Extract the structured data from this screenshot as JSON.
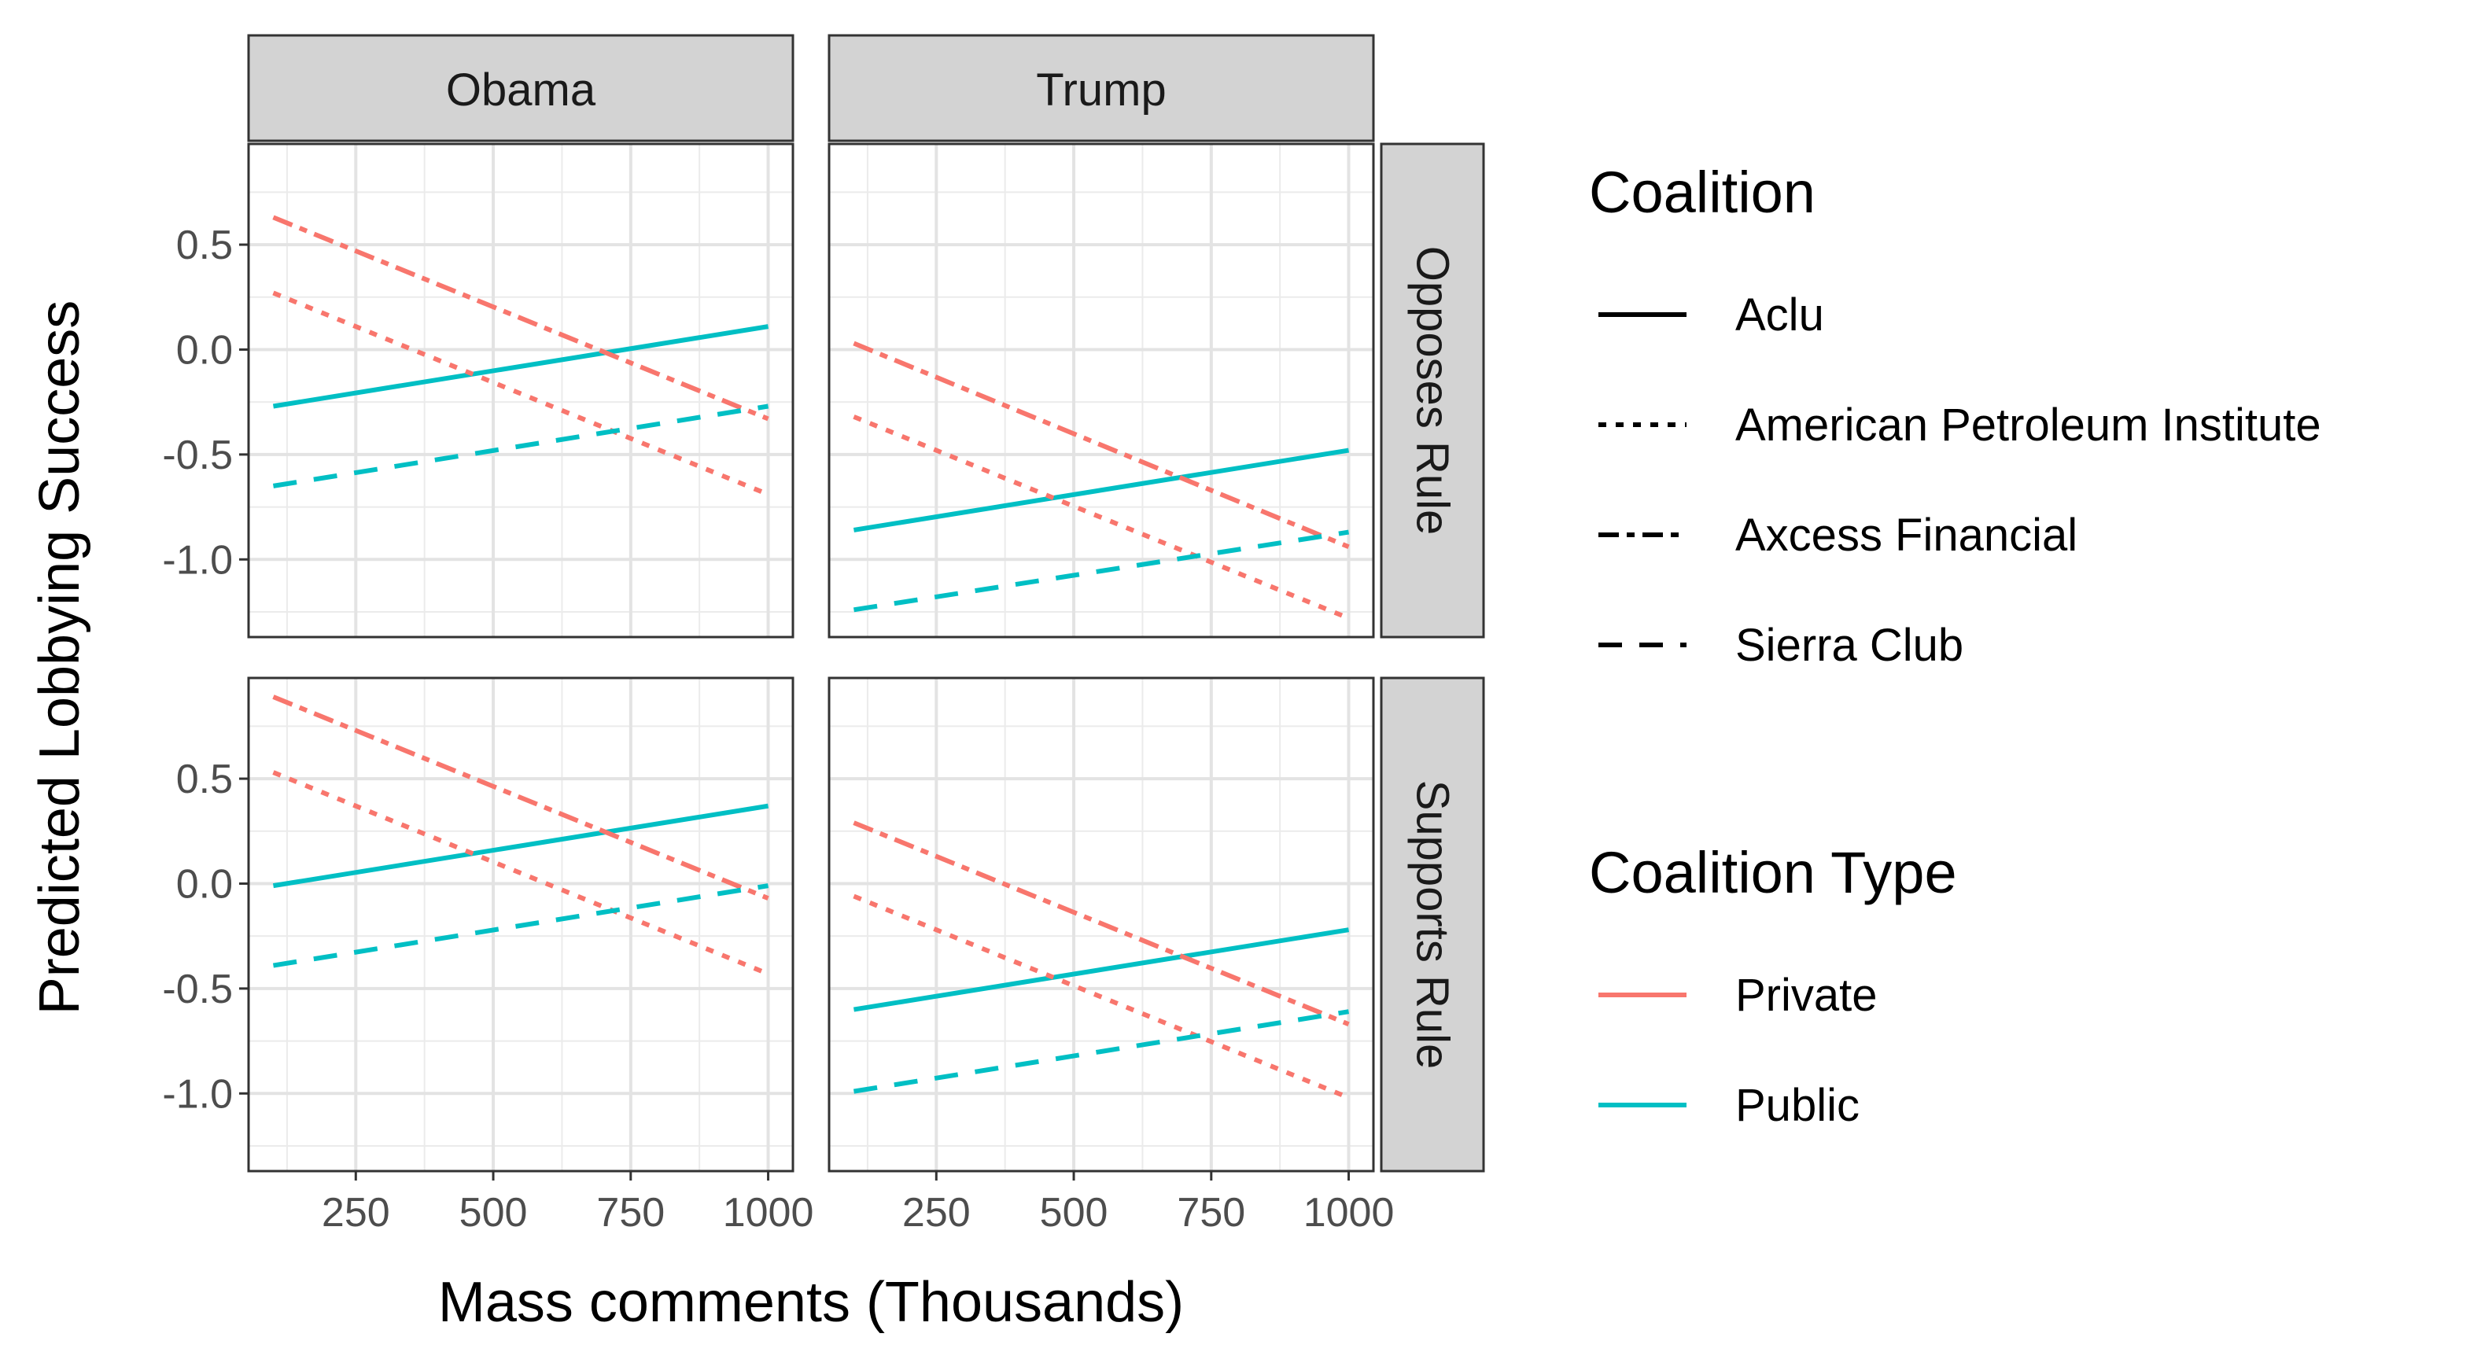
{
  "chart_data": {
    "type": "line",
    "x_label": "Mass comments (Thousands)",
    "y_label": "Predicted Lobbying Success",
    "x_ticks": [
      250,
      500,
      750,
      1000
    ],
    "y_ticks": [
      0.5,
      0.0,
      -0.5,
      -1.0
    ],
    "y_tick_labels": [
      "0.5",
      "0.0",
      "-0.5",
      "-1.0"
    ],
    "x_range": [
      55,
      1045
    ],
    "y_range": [
      -1.37,
      0.98
    ],
    "facet_columns": [
      "Obama",
      "Trump"
    ],
    "facet_rows": [
      "Opposes Rule",
      "Supports Rule"
    ],
    "legends": {
      "linetype": {
        "title": "Coalition",
        "entries": [
          {
            "label": "Aclu",
            "dash": "solid"
          },
          {
            "label": "American Petroleum Institute",
            "dash": "dotted"
          },
          {
            "label": "Axcess Financial",
            "dash": "dashdot"
          },
          {
            "label": "Sierra Club",
            "dash": "dashed"
          }
        ]
      },
      "color": {
        "title": "Coalition Type",
        "entries": [
          {
            "label": "Private",
            "color": "#F8766D"
          },
          {
            "label": "Public",
            "color": "#00BFC4"
          }
        ]
      }
    },
    "panels": [
      {
        "column": "Obama",
        "row": "Opposes Rule",
        "series": [
          {
            "coalition": "Aclu",
            "type": "Public",
            "x": [
              100,
              1000
            ],
            "y": [
              -0.27,
              0.11
            ]
          },
          {
            "coalition": "American Petroleum Institute",
            "type": "Private",
            "x": [
              100,
              1000
            ],
            "y": [
              0.27,
              -0.69
            ]
          },
          {
            "coalition": "Axcess Financial",
            "type": "Private",
            "x": [
              100,
              1000
            ],
            "y": [
              0.63,
              -0.33
            ]
          },
          {
            "coalition": "Sierra Club",
            "type": "Public",
            "x": [
              100,
              1000
            ],
            "y": [
              -0.65,
              -0.27
            ]
          }
        ]
      },
      {
        "column": "Trump",
        "row": "Opposes Rule",
        "series": [
          {
            "coalition": "Aclu",
            "type": "Public",
            "x": [
              100,
              1000
            ],
            "y": [
              -0.86,
              -0.48
            ]
          },
          {
            "coalition": "American Petroleum Institute",
            "type": "Private",
            "x": [
              100,
              1000
            ],
            "y": [
              -0.32,
              -1.28
            ]
          },
          {
            "coalition": "Axcess Financial",
            "type": "Private",
            "x": [
              100,
              1000
            ],
            "y": [
              0.03,
              -0.94
            ]
          },
          {
            "coalition": "Sierra Club",
            "type": "Public",
            "x": [
              100,
              1000
            ],
            "y": [
              -1.24,
              -0.87
            ]
          }
        ]
      },
      {
        "column": "Obama",
        "row": "Supports Rule",
        "series": [
          {
            "coalition": "Aclu",
            "type": "Public",
            "x": [
              100,
              1000
            ],
            "y": [
              -0.01,
              0.37
            ]
          },
          {
            "coalition": "American Petroleum Institute",
            "type": "Private",
            "x": [
              100,
              1000
            ],
            "y": [
              0.53,
              -0.43
            ]
          },
          {
            "coalition": "Axcess Financial",
            "type": "Private",
            "x": [
              100,
              1000
            ],
            "y": [
              0.89,
              -0.07
            ]
          },
          {
            "coalition": "Sierra Club",
            "type": "Public",
            "x": [
              100,
              1000
            ],
            "y": [
              -0.39,
              -0.01
            ]
          }
        ]
      },
      {
        "column": "Trump",
        "row": "Supports Rule",
        "series": [
          {
            "coalition": "Aclu",
            "type": "Public",
            "x": [
              100,
              1000
            ],
            "y": [
              -0.6,
              -0.22
            ]
          },
          {
            "coalition": "American Petroleum Institute",
            "type": "Private",
            "x": [
              100,
              1000
            ],
            "y": [
              -0.06,
              -1.02
            ]
          },
          {
            "coalition": "Axcess Financial",
            "type": "Private",
            "x": [
              100,
              1000
            ],
            "y": [
              0.29,
              -0.67
            ]
          },
          {
            "coalition": "Sierra Club",
            "type": "Public",
            "x": [
              100,
              1000
            ],
            "y": [
              -0.99,
              -0.61
            ]
          }
        ]
      }
    ]
  }
}
